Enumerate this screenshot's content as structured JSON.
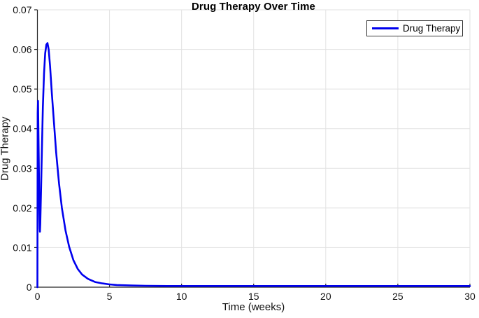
{
  "chart_data": {
    "type": "line",
    "title": "Drug Therapy Over Time",
    "xlabel": "Time (weeks)",
    "ylabel": "Drug Therapy",
    "xlim": [
      0,
      30
    ],
    "ylim": [
      0,
      0.07
    ],
    "xticks": [
      0,
      5,
      10,
      15,
      20,
      25,
      30
    ],
    "xtick_labels": [
      "0",
      "5",
      "10",
      "15",
      "20",
      "25",
      "30"
    ],
    "yticks": [
      0,
      0.01,
      0.02,
      0.03,
      0.04,
      0.05,
      0.06,
      0.07
    ],
    "ytick_labels": [
      "0",
      "0.01",
      "0.02",
      "0.03",
      "0.04",
      "0.05",
      "0.06",
      "0.07"
    ],
    "grid": true,
    "legend": {
      "position": "top-right",
      "entries": [
        "Drug Therapy"
      ]
    },
    "series": [
      {
        "name": "Drug Therapy",
        "color": "#0000EE",
        "x": [
          0,
          0.02,
          0.045,
          0.07,
          0.1,
          0.13,
          0.16,
          0.175,
          0.2,
          0.25,
          0.31,
          0.38,
          0.46,
          0.54,
          0.62,
          0.7,
          0.78,
          0.88,
          1.0,
          1.15,
          1.3,
          1.5,
          1.7,
          1.95,
          2.2,
          2.5,
          2.8,
          3.1,
          3.5,
          4.0,
          4.5,
          5.0,
          5.5,
          6.5,
          7.5,
          9,
          12,
          16,
          20,
          25,
          30
        ],
        "y": [
          0,
          0.044,
          0.047,
          0.04,
          0.03,
          0.021,
          0.0148,
          0.014,
          0.016,
          0.0245,
          0.0345,
          0.0455,
          0.054,
          0.059,
          0.0612,
          0.0616,
          0.06,
          0.0558,
          0.049,
          0.0415,
          0.034,
          0.0262,
          0.02,
          0.0143,
          0.0102,
          0.0068,
          0.0046,
          0.0032,
          0.0021,
          0.0013,
          0.00095,
          0.0007,
          0.00055,
          0.00042,
          0.00035,
          0.0003,
          0.0003,
          0.0003,
          0.0003,
          0.0003,
          0.0003
        ]
      }
    ],
    "style": {
      "line_color": "#0000EE",
      "line_width": 2.6,
      "axis_color": "#262626",
      "grid_color": "#e2e2e2",
      "tick_text_color": "#111111",
      "legend_border_color": "#3c3c3c",
      "background": "#ffffff"
    }
  }
}
